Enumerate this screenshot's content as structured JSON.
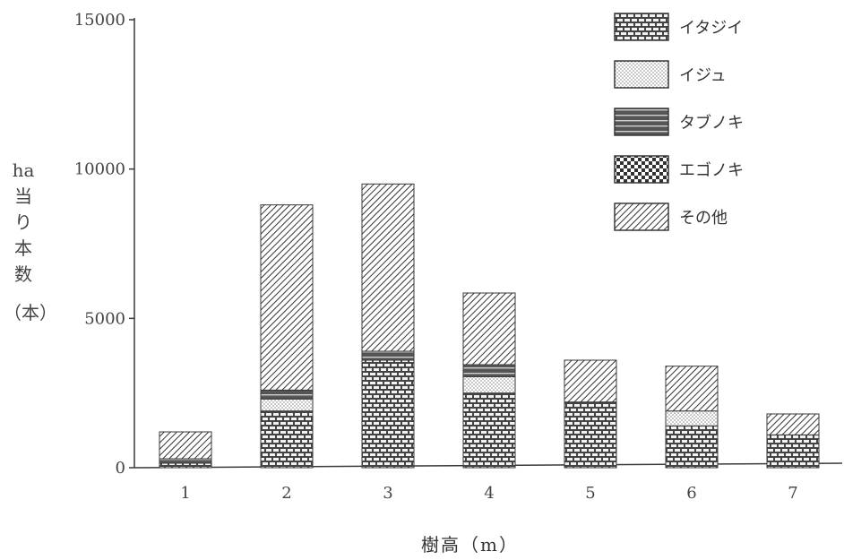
{
  "chart_data": {
    "type": "bar",
    "stacked": true,
    "categories": [
      "1",
      "2",
      "3",
      "4",
      "5",
      "6",
      "7"
    ],
    "series": [
      {
        "name": "イタジイ",
        "pattern": "brick",
        "values": [
          150,
          1900,
          3600,
          2500,
          2200,
          1400,
          1100
        ]
      },
      {
        "name": "イジュ",
        "pattern": "dots",
        "values": [
          0,
          400,
          0,
          550,
          0,
          500,
          0
        ]
      },
      {
        "name": "タブノキ",
        "pattern": "lines",
        "values": [
          150,
          300,
          300,
          400,
          0,
          0,
          0
        ]
      },
      {
        "name": "エゴノキ",
        "pattern": "checker",
        "values": [
          0,
          0,
          0,
          0,
          0,
          0,
          0
        ]
      },
      {
        "name": "その他",
        "pattern": "hatch",
        "values": [
          900,
          6200,
          5600,
          2400,
          1400,
          1500,
          700
        ]
      }
    ],
    "yticks": [
      "0",
      "5000",
      "10000",
      "15000"
    ],
    "ylim": [
      0,
      15000
    ],
    "ylabel": {
      "lines": [
        "ha",
        "当",
        "り",
        "本",
        "数"
      ],
      "unit": "（本）"
    },
    "xlabel": "樹高（m）",
    "legend_position": "top-right",
    "colors": {
      "ink": "#3a3a3a",
      "light": "#e6e6e6",
      "paper": "#ffffff"
    }
  }
}
